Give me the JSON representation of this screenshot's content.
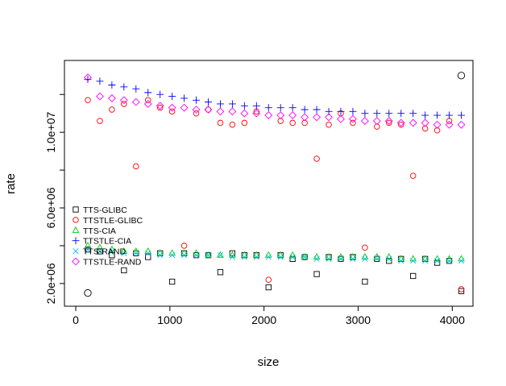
{
  "chart_data": {
    "type": "scatter",
    "title": "",
    "xlabel": "size",
    "ylabel": "rate",
    "xlim": [
      -120,
      4220
    ],
    "ylim": [
      800000,
      13800000
    ],
    "x_ticks": [
      0,
      1000,
      2000,
      3000,
      4000
    ],
    "x_tick_labels": [
      "0",
      "1000",
      "2000",
      "3000",
      "4000"
    ],
    "y_ticks": [
      2000000,
      6000000,
      10000000
    ],
    "y_tick_labels": [
      "2.0e+06",
      "6.0e+06",
      "1.0e+07"
    ],
    "y_minor_ticks": [
      4000000,
      8000000,
      12000000
    ],
    "grid": false,
    "legend_position": "left",
    "legend_note": "legend box drawn without border; entries overlap the lower band of points",
    "series": [
      {
        "name": "TTS-GLIBC",
        "marker": "square",
        "color": "#000000",
        "x_start": 128,
        "x_step": 128,
        "values": [
          3800000,
          3700000,
          3500000,
          2700000,
          3600000,
          3400000,
          3600000,
          2100000,
          3600000,
          3500000,
          3500000,
          2600000,
          3600000,
          3500000,
          3500000,
          1800000,
          3500000,
          3300000,
          3400000,
          2500000,
          3400000,
          3300000,
          3400000,
          2100000,
          3300000,
          3200000,
          3300000,
          2400000,
          3300000,
          3100000,
          3200000,
          1600000
        ]
      },
      {
        "name": "TTSTLE-GLIBC",
        "marker": "circle",
        "color": "#ff0000",
        "x_start": 128,
        "x_step": 128,
        "values": [
          11700000,
          10600000,
          11200000,
          11500000,
          8200000,
          11700000,
          11300000,
          11100000,
          4000000,
          11000000,
          11200000,
          10500000,
          10400000,
          10500000,
          11100000,
          2200000,
          10600000,
          10500000,
          10500000,
          8600000,
          10400000,
          11000000,
          10500000,
          3900000,
          10300000,
          10500000,
          10400000,
          7700000,
          10200000,
          10100000,
          10600000,
          1700000
        ]
      },
      {
        "name": "TTS-CIA",
        "marker": "triangle",
        "color": "#00cd00",
        "x_start": 128,
        "x_step": 128,
        "values": [
          4000000,
          3900000,
          3800000,
          3700000,
          3700000,
          3700000,
          3600000,
          3600000,
          3600000,
          3600000,
          3500000,
          3500000,
          3500000,
          3500000,
          3500000,
          3500000,
          3500000,
          3500000,
          3400000,
          3400000,
          3400000,
          3400000,
          3400000,
          3400000,
          3400000,
          3400000,
          3300000,
          3300000,
          3300000,
          3300000,
          3300000,
          3300000
        ]
      },
      {
        "name": "TTSTLE-CIA",
        "marker": "plus",
        "color": "#0000ff",
        "x_start": 128,
        "x_step": 128,
        "values": [
          12800000,
          12700000,
          12500000,
          12400000,
          12300000,
          12100000,
          12000000,
          11900000,
          11800000,
          11700000,
          11600000,
          11500000,
          11500000,
          11400000,
          11400000,
          11300000,
          11300000,
          11300000,
          11200000,
          11200000,
          11100000,
          11100000,
          11100000,
          11000000,
          11000000,
          11000000,
          11000000,
          11000000,
          10900000,
          10900000,
          10900000,
          10900000
        ]
      },
      {
        "name": "TTS-RAND",
        "marker": "x",
        "color": "#00bfff",
        "x_start": 128,
        "x_step": 128,
        "values": [
          3800000,
          3700000,
          3700000,
          3600000,
          3600000,
          3600000,
          3500000,
          3500000,
          3500000,
          3500000,
          3500000,
          3500000,
          3400000,
          3400000,
          3400000,
          3400000,
          3400000,
          3400000,
          3400000,
          3300000,
          3300000,
          3300000,
          3300000,
          3300000,
          3300000,
          3300000,
          3200000,
          3200000,
          3200000,
          3200000,
          3200000,
          3200000
        ]
      },
      {
        "name": "TTSTLE-RAND",
        "marker": "diamond",
        "color": "#ff00ff",
        "x_start": 128,
        "x_step": 128,
        "values": [
          12900000,
          11900000,
          11800000,
          11700000,
          11600000,
          11500000,
          11400000,
          11300000,
          11300000,
          11200000,
          11200000,
          11100000,
          11100000,
          11000000,
          11000000,
          10900000,
          10900000,
          10900000,
          10800000,
          10800000,
          10800000,
          10700000,
          10700000,
          10600000,
          10600000,
          10600000,
          10500000,
          10500000,
          10500000,
          10400000,
          10400000,
          10400000
        ]
      },
      {
        "name": "outliers",
        "marker": "large-circle",
        "color": "#000000",
        "x": [
          128,
          4096
        ],
        "values": [
          1500000,
          13000000
        ]
      }
    ]
  }
}
